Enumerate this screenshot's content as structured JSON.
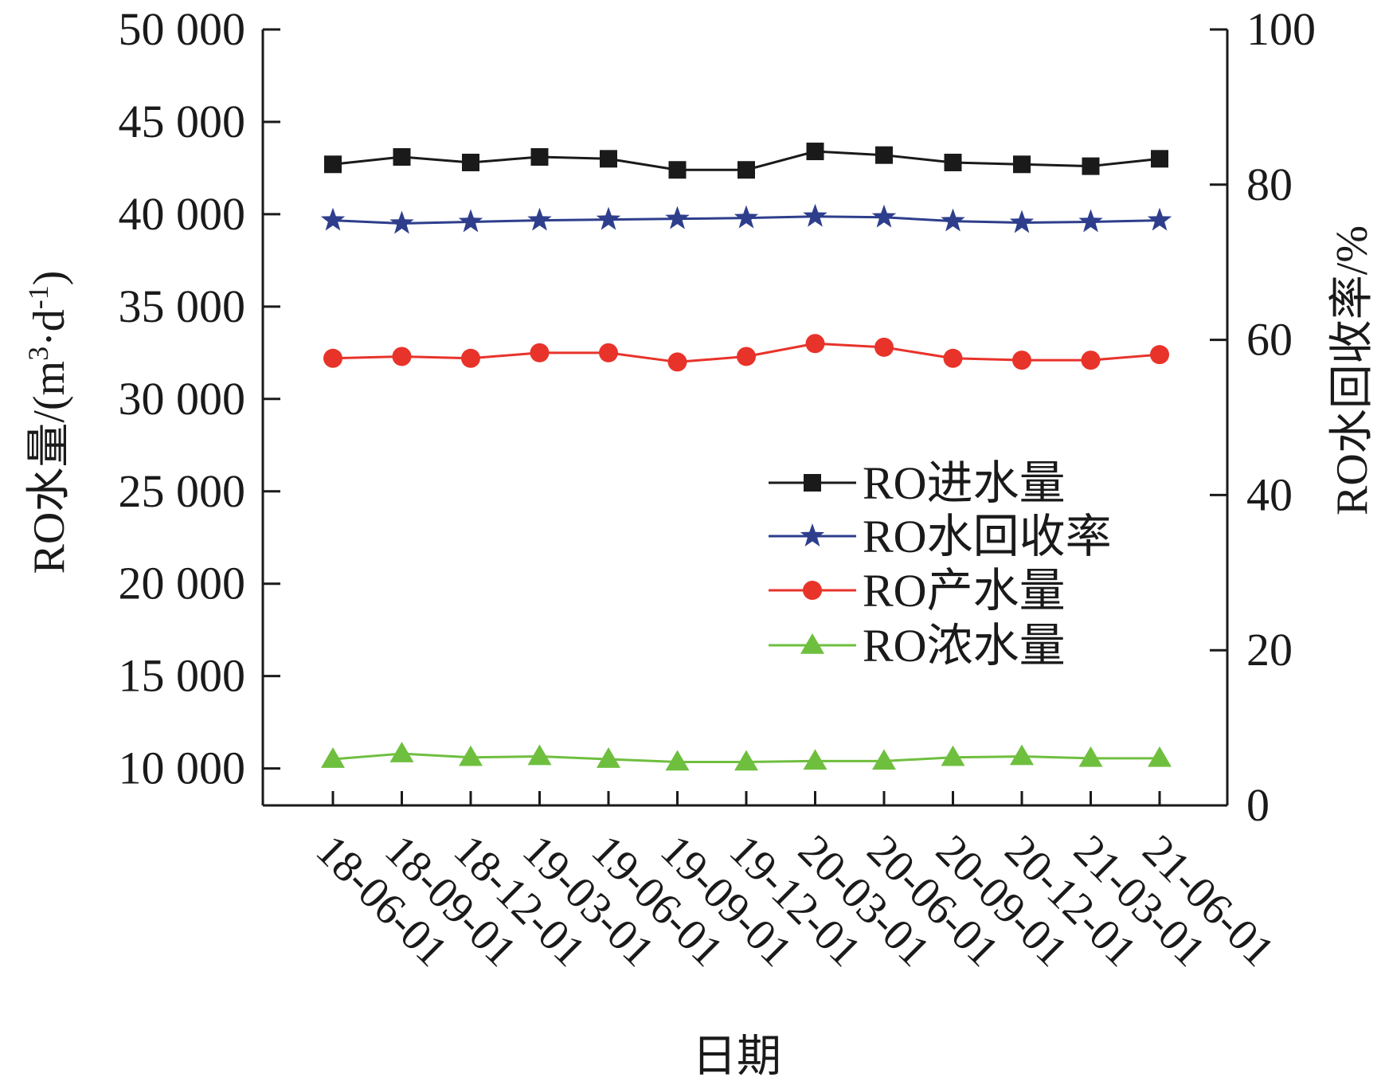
{
  "chart_data": {
    "type": "line",
    "title": "",
    "xlabel": "日期",
    "ylabel": "RO水量/(m³·d⁻¹)",
    "ylabel_parts": {
      "main": "RO水量/(m",
      "sup1": "3",
      "mid": "·d",
      "sup2": "-1",
      "end": ")"
    },
    "y2label": "RO水回收率/%",
    "categories": [
      "18-06-01",
      "18-09-01",
      "18-12-01",
      "19-03-01",
      "19-06-01",
      "19-09-01",
      "19-12-01",
      "20-03-01",
      "20-06-01",
      "20-09-01",
      "20-12-01",
      "21-03-01",
      "21-06-01"
    ],
    "ylim": [
      8000,
      50000
    ],
    "y2lim": [
      0,
      100
    ],
    "yticks": [
      10000,
      15000,
      20000,
      25000,
      30000,
      35000,
      40000,
      45000,
      50000
    ],
    "yticklabels": [
      "10 000",
      "15 000",
      "20 000",
      "25 000",
      "30 000",
      "35 000",
      "40 000",
      "45 000",
      "50 000"
    ],
    "y2ticks": [
      0,
      20,
      40,
      60,
      80,
      100
    ],
    "y2ticklabels": [
      "0",
      "20",
      "40",
      "60",
      "80",
      "100"
    ],
    "grid": false,
    "legend_position": "center-right",
    "series": [
      {
        "name": "RO进水量",
        "axis": "left",
        "marker": "square",
        "color": "#1a1a1a",
        "values": [
          42700,
          43100,
          42800,
          43100,
          43000,
          42400,
          42400,
          43400,
          43200,
          42800,
          42700,
          42600,
          43000
        ]
      },
      {
        "name": "RO水回收率",
        "axis": "right",
        "marker": "star",
        "color": "#2e3e8c",
        "values": [
          75.4,
          75.0,
          75.2,
          75.4,
          75.5,
          75.6,
          75.7,
          75.9,
          75.8,
          75.3,
          75.1,
          75.2,
          75.4
        ]
      },
      {
        "name": "RO产水量",
        "axis": "left",
        "marker": "circle",
        "color": "#e8332a",
        "values": [
          32200,
          32300,
          32200,
          32500,
          32500,
          32000,
          32300,
          33000,
          32800,
          32200,
          32100,
          32100,
          32400
        ]
      },
      {
        "name": "RO浓水量",
        "axis": "left",
        "marker": "triangle",
        "color": "#6fbf3f",
        "values": [
          10500,
          10800,
          10600,
          10650,
          10500,
          10350,
          10350,
          10400,
          10400,
          10600,
          10650,
          10550,
          10550
        ]
      }
    ]
  }
}
